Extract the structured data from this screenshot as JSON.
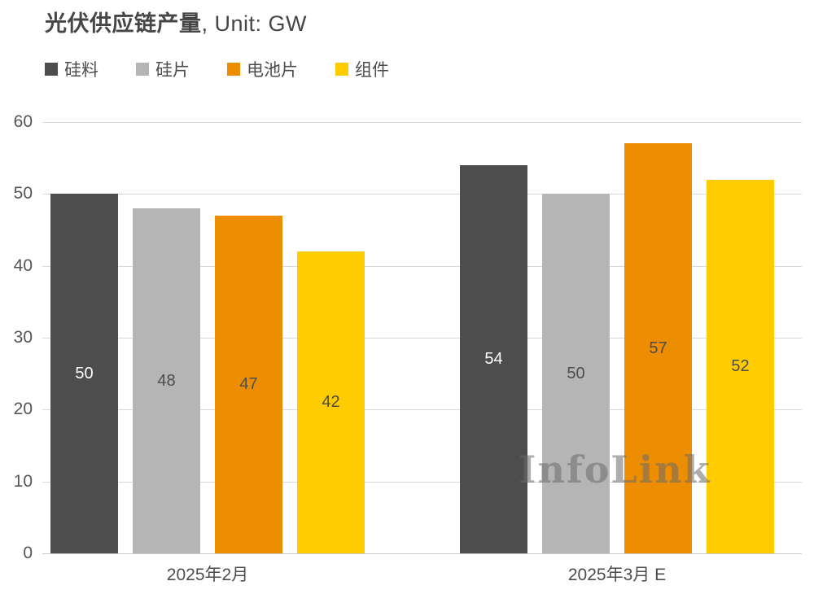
{
  "header": {
    "title": "光伏供应链产量",
    "title_suffix": ", Unit: GW"
  },
  "watermark": "InfoLink",
  "chart_data": {
    "type": "bar",
    "title": "光伏供应链产量",
    "unit": "GW",
    "categories": [
      "2025年2月",
      "2025年3月 E"
    ],
    "series": [
      {
        "name": "硅料",
        "color": "#4D4D4D",
        "label_color": "#FFFFFF",
        "values": [
          50,
          54
        ]
      },
      {
        "name": "硅片",
        "color": "#B5B5B5",
        "label_color": "#4D4D4D",
        "values": [
          48,
          50
        ]
      },
      {
        "name": "电池片",
        "color": "#ED8E02",
        "label_color": "#4D4D4D",
        "values": [
          47,
          57
        ]
      },
      {
        "name": "组件",
        "color": "#FFCC02",
        "label_color": "#4D4D4D",
        "values": [
          42,
          52
        ]
      }
    ],
    "y_axis": {
      "min": 0,
      "max": 60,
      "step": 10,
      "tick_labels": [
        "0",
        "10",
        "20",
        "30",
        "40",
        "50",
        "60"
      ]
    },
    "grid": true,
    "legend_position": "top-left",
    "value_labels": "centered-inside-bars",
    "colors": {
      "grid_line": "#D9D9D9",
      "axis_text": "#555555",
      "title_text": "#464646",
      "watermark_text": "#696969",
      "background": "#FFFFFF"
    }
  }
}
